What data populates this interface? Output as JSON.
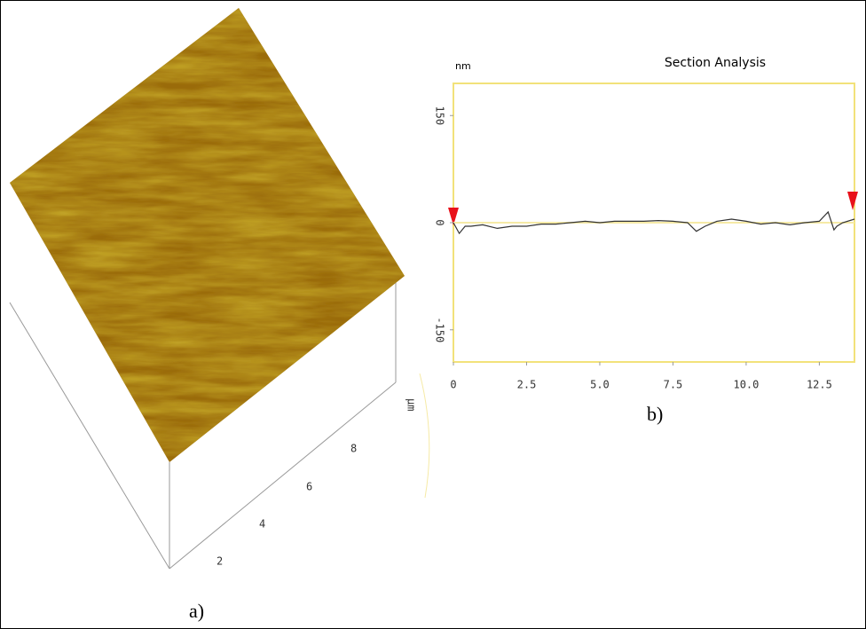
{
  "panel_a": {
    "label": "a)",
    "axis_ticks": [
      "2",
      "4",
      "6",
      "8"
    ],
    "axis_unit": "µm"
  },
  "chart_data": {
    "type": "line",
    "title": "Section Analysis",
    "y_unit": "nm",
    "panel_label": "b)",
    "x": [
      0,
      0.2,
      0.4,
      0.6,
      1,
      1.5,
      2,
      2.5,
      3,
      3.5,
      4,
      4.5,
      5,
      5.5,
      6,
      6.5,
      7,
      7.5,
      8,
      8.3,
      8.6,
      9,
      9.5,
      10,
      10.5,
      11,
      11.5,
      12,
      12.5,
      12.8,
      13,
      13.1,
      13.3,
      13.7
    ],
    "values": [
      0,
      -15,
      -5,
      -5,
      -3,
      -8,
      -5,
      -5,
      -2,
      -2,
      0,
      2,
      0,
      2,
      2,
      2,
      3,
      2,
      0,
      -12,
      -5,
      2,
      5,
      2,
      -2,
      0,
      -3,
      0,
      2,
      15,
      -10,
      -5,
      0,
      5
    ],
    "color": "#333333",
    "xlim": [
      0,
      13.7
    ],
    "xticks": [
      0,
      2.5,
      {
        "value": 5,
        "label": "5.0"
      },
      7.5,
      {
        "value": 10,
        "label": "10.0"
      },
      12.5
    ],
    "ylim": [
      -195,
      195
    ],
    "yticks": [
      150,
      0,
      -150
    ]
  }
}
